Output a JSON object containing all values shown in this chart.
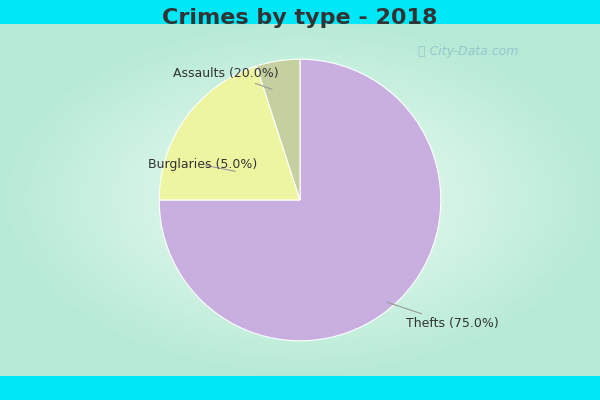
{
  "title": "Crimes by type - 2018",
  "slices": [
    {
      "label": "Thefts (75.0%)",
      "value": 75.0,
      "color": "#c9aee0"
    },
    {
      "label": "Assaults (20.0%)",
      "value": 20.0,
      "color": "#eef5a0"
    },
    {
      "label": "Burglaries (5.0%)",
      "value": 5.0,
      "color": "#c5d0a0"
    }
  ],
  "border_color": "#00e8f8",
  "bg_gradient_outer": "#b8e8d8",
  "bg_gradient_inner": "#e8f8f0",
  "title_fontsize": 16,
  "label_fontsize": 9,
  "watermark_text": "ⓘ City-Data.com",
  "startangle": 90
}
